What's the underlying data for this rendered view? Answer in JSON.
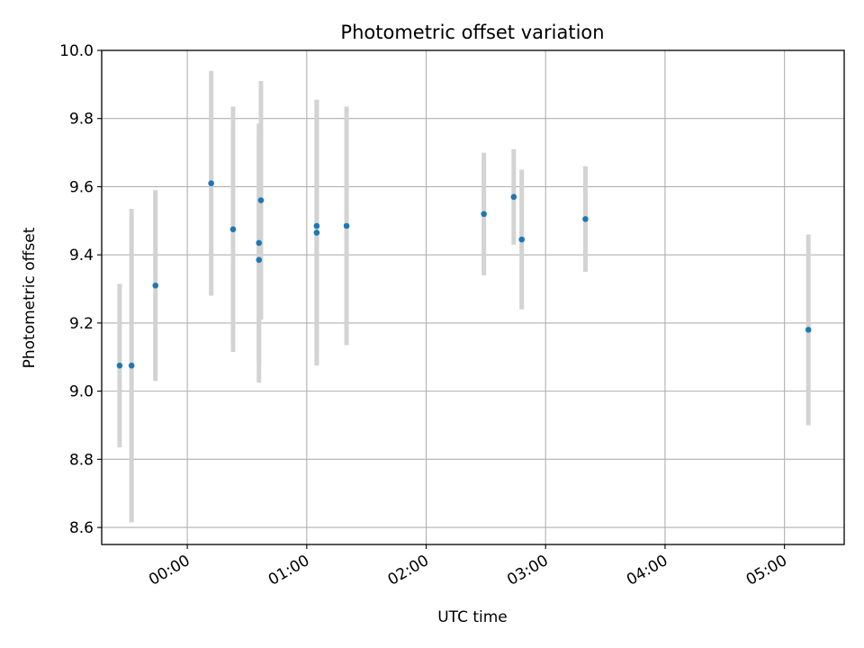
{
  "chart_data": {
    "type": "scatter",
    "title": "Photometric offset variation",
    "xlabel": "UTC time",
    "ylabel": "Photometric offset",
    "x_axis_kind": "time",
    "x_ticks": [
      "00:00",
      "01:00",
      "02:00",
      "03:00",
      "04:00",
      "05:00"
    ],
    "y_ticks": [
      "8.6",
      "8.8",
      "9.0",
      "9.2",
      "9.4",
      "9.6",
      "9.8",
      "10.0"
    ],
    "xlim": [
      "23:17",
      "05:30"
    ],
    "ylim": [
      8.55,
      10.0
    ],
    "grid": true,
    "legend": "none",
    "colors": {
      "points": "#1f77b4",
      "errorbars": "#d3d3d3",
      "grid": "#b0b0b0"
    },
    "series": [
      {
        "points": [
          {
            "x": "23:26",
            "y": 9.075,
            "err": 0.24
          },
          {
            "x": "23:32",
            "y": 9.075,
            "err": 0.46
          },
          {
            "x": "23:44",
            "y": 9.31,
            "err": 0.28
          },
          {
            "x": "00:12",
            "y": 9.61,
            "err": 0.33
          },
          {
            "x": "00:23",
            "y": 9.475,
            "err": 0.36
          },
          {
            "x": "00:36",
            "y": 9.385,
            "err": 0.36
          },
          {
            "x": "00:36",
            "y": 9.435,
            "err": 0.35
          },
          {
            "x": "00:37",
            "y": 9.56,
            "err": 0.35
          },
          {
            "x": "01:05",
            "y": 9.485,
            "err": 0.37
          },
          {
            "x": "01:05",
            "y": 9.465,
            "err": 0.39
          },
          {
            "x": "01:20",
            "y": 9.485,
            "err": 0.35
          },
          {
            "x": "02:29",
            "y": 9.52,
            "err": 0.18
          },
          {
            "x": "02:44",
            "y": 9.57,
            "err": 0.14
          },
          {
            "x": "02:48",
            "y": 9.445,
            "err": 0.205
          },
          {
            "x": "03:20",
            "y": 9.505,
            "err": 0.155
          },
          {
            "x": "05:12",
            "y": 9.18,
            "err": 0.28
          }
        ]
      }
    ]
  }
}
